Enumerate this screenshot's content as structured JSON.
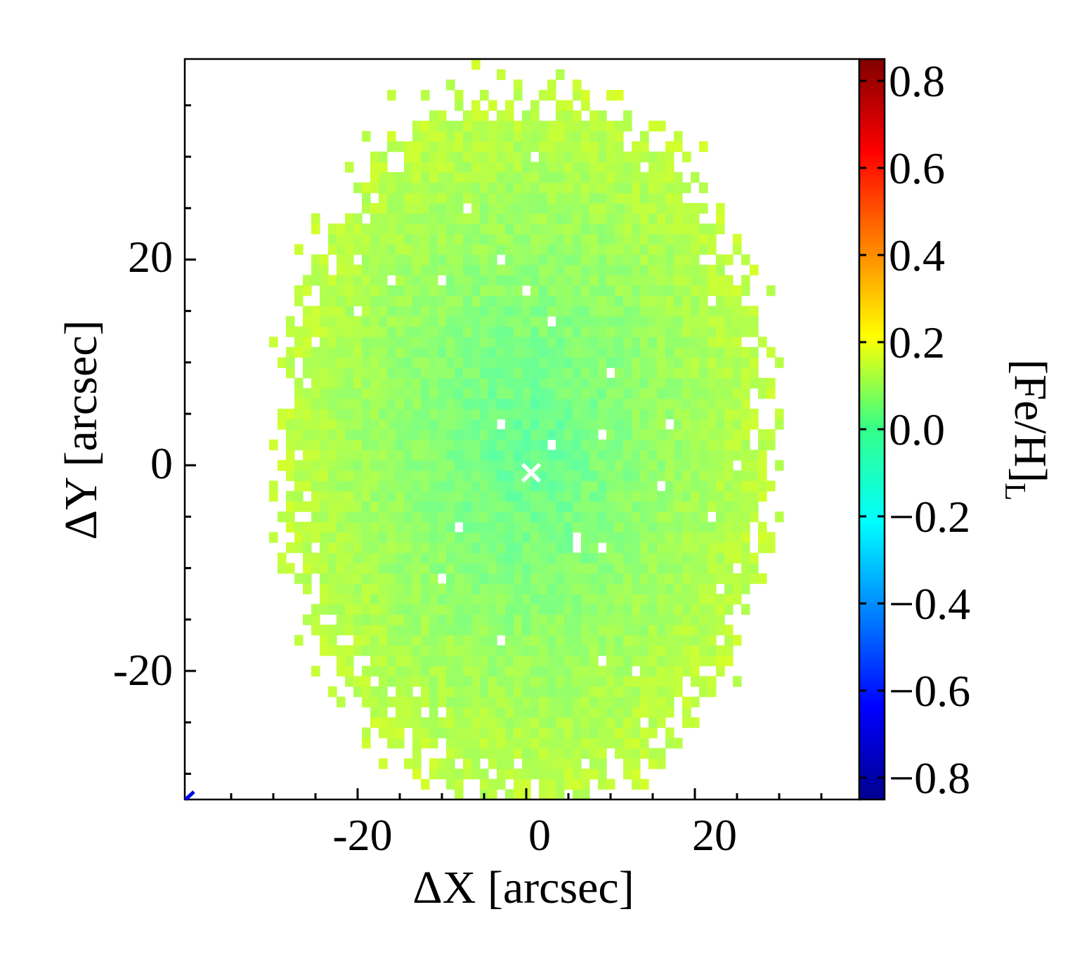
{
  "chart_data": {
    "type": "heatmap",
    "title": "",
    "xlabel": "ΔX [arcsec]",
    "ylabel": "ΔY [arcsec]",
    "xlim": [
      -40.5,
      39.5
    ],
    "ylim": [
      -32.5,
      39.5
    ],
    "x_ticks": [
      "-20",
      "0",
      "20"
    ],
    "x_tick_values": [
      -20,
      0,
      20
    ],
    "y_ticks": [
      "20",
      "0",
      "-20"
    ],
    "y_tick_values": [
      20,
      0,
      -20
    ],
    "colorbar": {
      "label": "[Fe/H]",
      "label_subscript": "L",
      "range": [
        -0.85,
        0.85
      ],
      "ticks": [
        "0.8",
        "0.6",
        "0.4",
        "0.2",
        "0.0",
        "−0.2",
        "−0.4",
        "−0.6",
        "−0.8"
      ],
      "tick_values": [
        0.8,
        0.6,
        0.4,
        0.2,
        0.0,
        -0.2,
        -0.4,
        -0.6,
        -0.8
      ],
      "colormap": "jet"
    },
    "map": {
      "description_values": "Spatially binned light-weighted metallicity; values roughly between -0.15 and 0.2",
      "center_value": -0.05,
      "edge_value": 0.12,
      "ellipse_semi_axes_arcsec": [
        31,
        37
      ],
      "ellipse_center_arcsec": [
        0,
        2
      ],
      "pixel_size_arcsec": 1.0
    },
    "center_marker": {
      "x": -1,
      "y": -1,
      "symbol": "×",
      "color": "#ffffff"
    },
    "grid": false,
    "legend": "none"
  }
}
